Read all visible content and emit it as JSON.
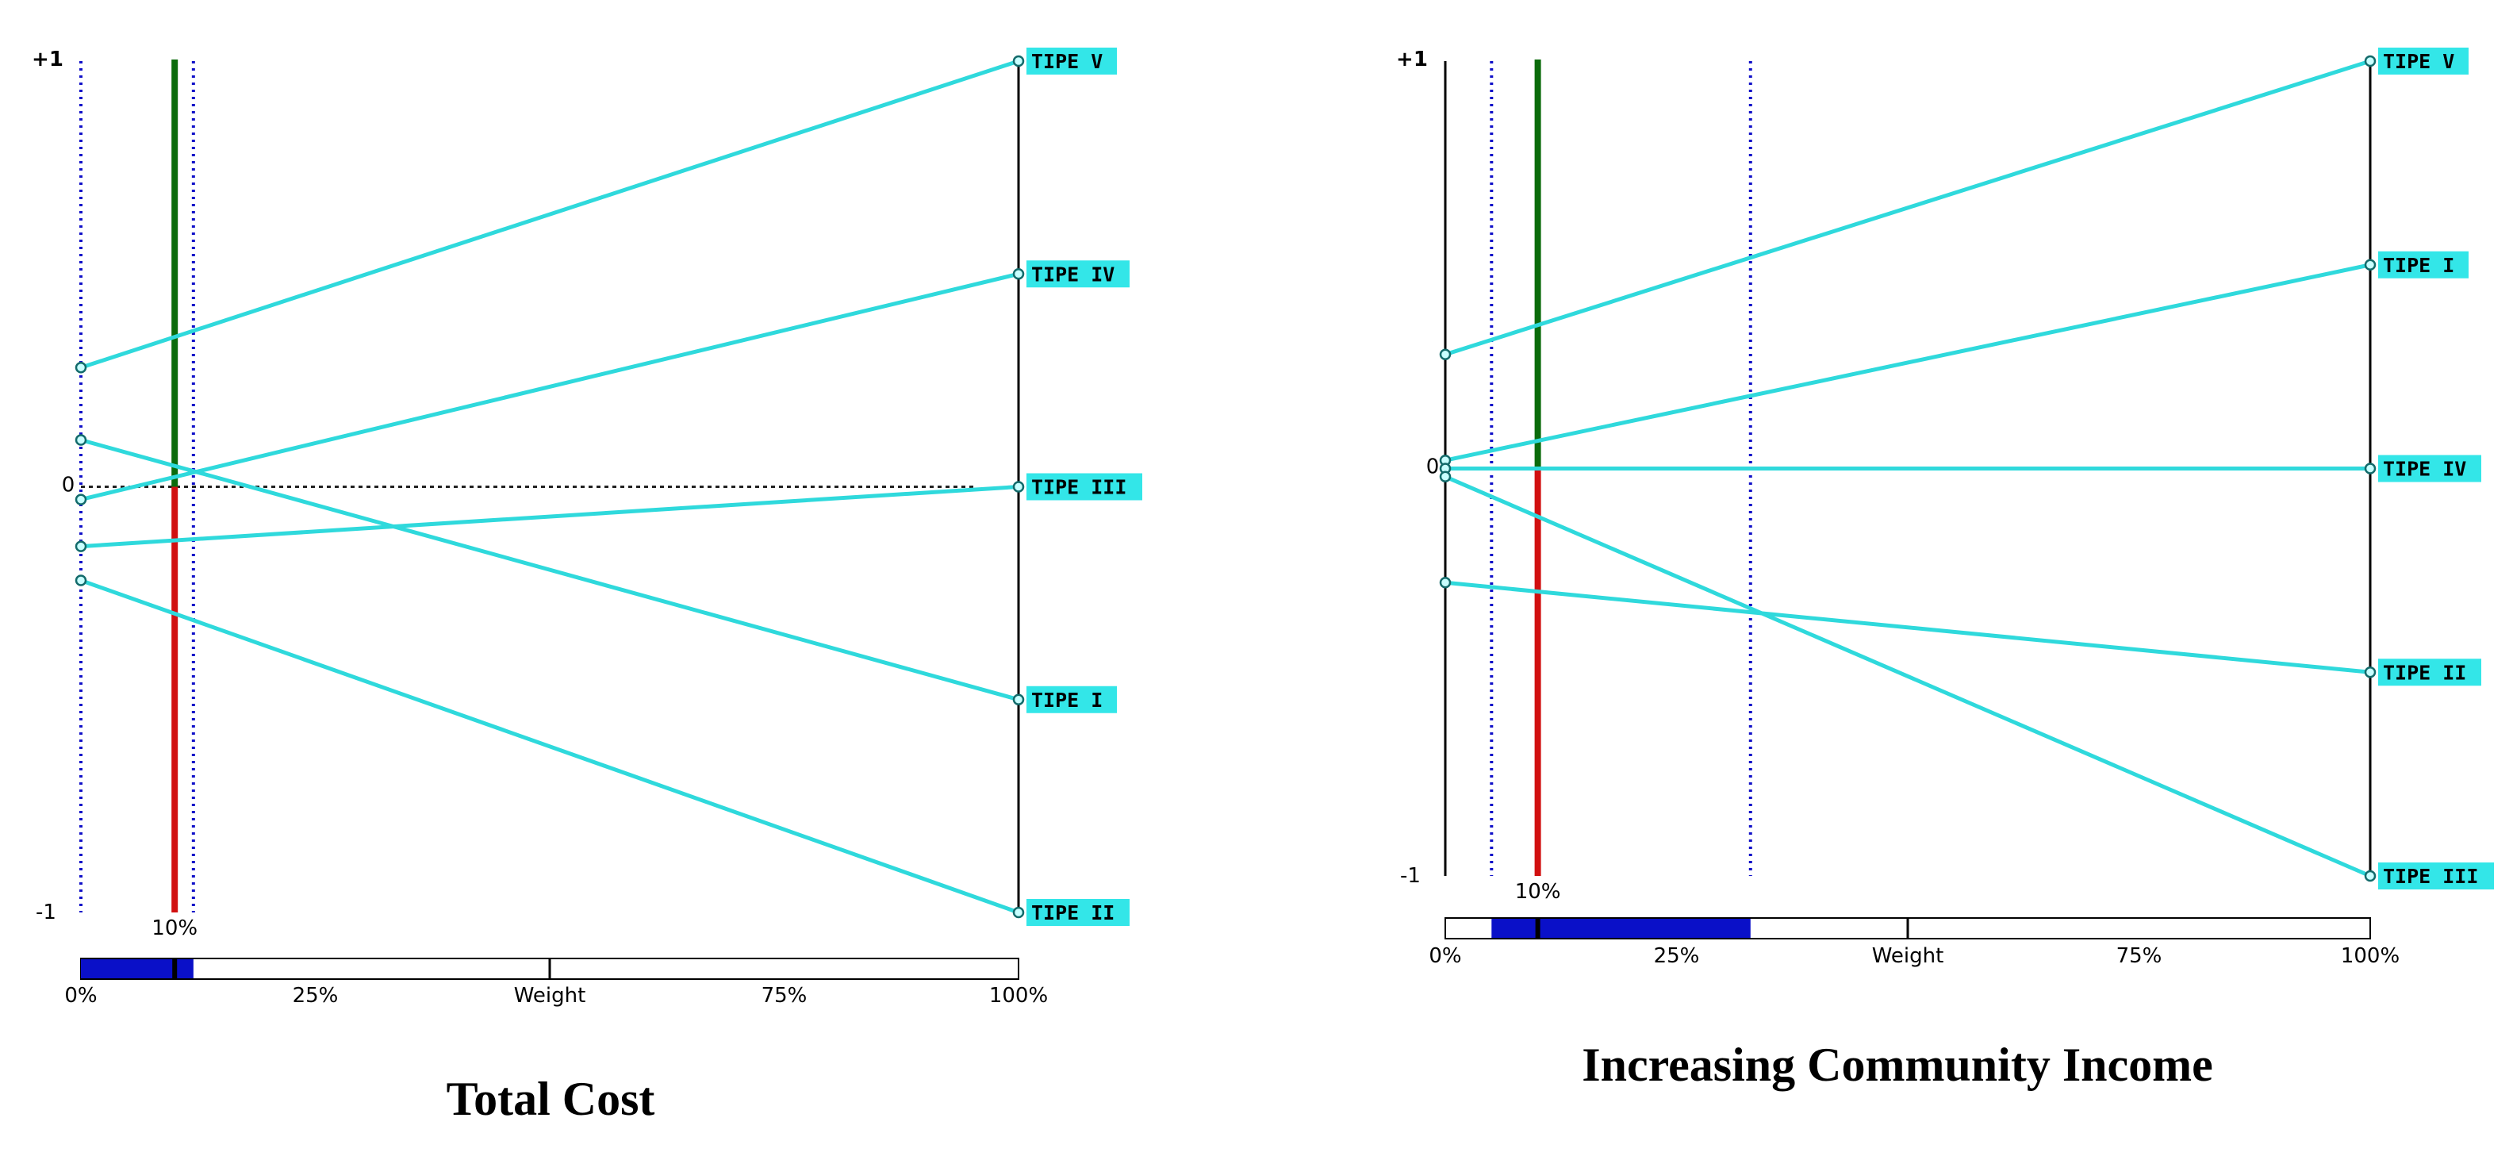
{
  "colors": {
    "line": "#2fd9dc",
    "tag_bg": "#33e6e8",
    "axis": "#000000",
    "marker_pos": "#0b6b0b",
    "marker_neg": "#d11010",
    "range": "#1010c8",
    "bar_fill": "#0a10c8"
  },
  "chart_data": [
    {
      "type": "line",
      "title": "Total Cost",
      "xlabel": "Weight",
      "x_ticks": [
        "0%",
        "25%",
        "Weight",
        "75%",
        "100%"
      ],
      "y_top_label": "+1",
      "y_zero_label": "0",
      "y_bottom_label": "-1",
      "ylim": [
        -1,
        1
      ],
      "xlim": [
        0,
        100
      ],
      "current_weight": 10,
      "current_weight_label": "10%",
      "stability_range": [
        0,
        12
      ],
      "series": [
        {
          "name": "TIPE V",
          "values": [
            0.28,
            1.0
          ]
        },
        {
          "name": "TIPE IV",
          "values": [
            -0.03,
            0.5
          ]
        },
        {
          "name": "TIPE III",
          "values": [
            -0.14,
            0.0
          ]
        },
        {
          "name": "TIPE I",
          "values": [
            0.11,
            -0.5
          ]
        },
        {
          "name": "TIPE II",
          "values": [
            -0.22,
            -1.0
          ]
        }
      ]
    },
    {
      "type": "line",
      "title": "Increasing Community Income",
      "xlabel": "Weight",
      "x_ticks": [
        "0%",
        "25%",
        "Weight",
        "75%",
        "100%"
      ],
      "y_top_label": "+1",
      "y_zero_label": "0",
      "y_bottom_label": "-1",
      "ylim": [
        -1,
        1
      ],
      "xlim": [
        0,
        100
      ],
      "current_weight": 10,
      "current_weight_label": "10%",
      "stability_range": [
        5,
        33
      ],
      "series": [
        {
          "name": "TIPE V",
          "values": [
            0.28,
            1.0
          ]
        },
        {
          "name": "TIPE I",
          "values": [
            0.02,
            0.5
          ]
        },
        {
          "name": "TIPE IV",
          "values": [
            0.0,
            0.0
          ]
        },
        {
          "name": "TIPE II",
          "values": [
            -0.28,
            -0.5
          ]
        },
        {
          "name": "TIPE III",
          "values": [
            -0.02,
            -1.0
          ]
        }
      ]
    }
  ]
}
